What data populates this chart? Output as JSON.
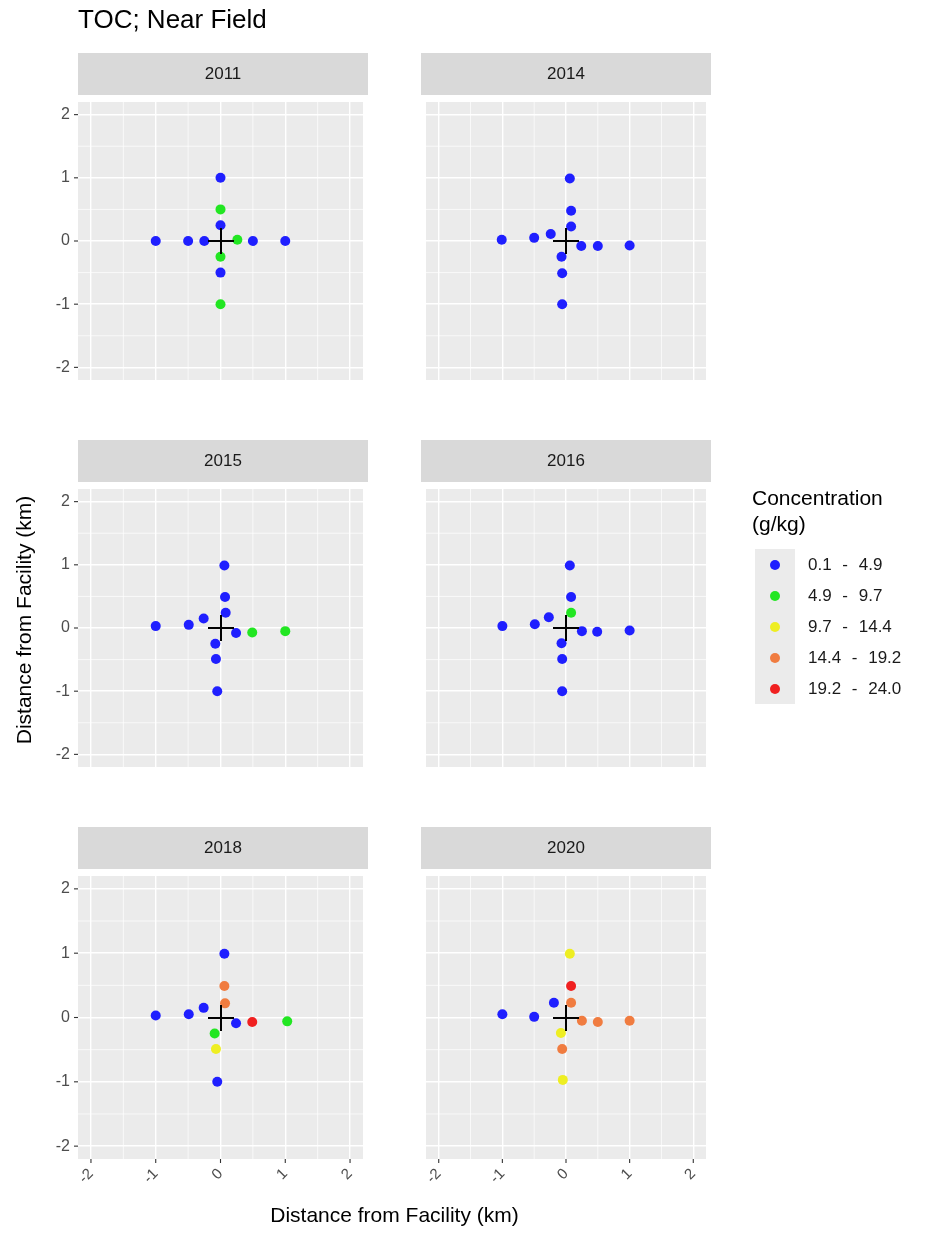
{
  "chart_data": [
    {
      "type": "scatter",
      "title": "2011",
      "subtitle": "TOC; Near Field",
      "xlim": [
        -2.2,
        2.2
      ],
      "ylim": [
        -2.2,
        2.2
      ],
      "xticks": [
        -2,
        -1,
        0,
        1,
        2
      ],
      "yticks": [
        -2,
        -1,
        0,
        1,
        2
      ],
      "grid": true,
      "tick_labels": "y",
      "marker": "circle",
      "series": [
        {
          "color": "#1f1fff",
          "x": [
            0,
            0,
            -1,
            -0.5,
            -0.25,
            0.5,
            1,
            0
          ],
          "values": [
            1,
            0.25,
            0,
            0,
            0,
            0,
            0,
            -0.5
          ]
        },
        {
          "color": "#22e622",
          "x": [
            0,
            0.26,
            0,
            0
          ],
          "values": [
            0.5,
            0.02,
            -0.25,
            -1
          ]
        }
      ]
    },
    {
      "type": "scatter",
      "title": "2014",
      "xlim": [
        -2.2,
        2.2
      ],
      "ylim": [
        -2.2,
        2.2
      ],
      "xticks": [
        -2,
        -1,
        0,
        1,
        2
      ],
      "yticks": [
        -2,
        -1,
        0,
        1,
        2
      ],
      "grid": true,
      "tick_labels": false,
      "marker": "circle",
      "series": [
        {
          "color": "#1f1fff",
          "x": [
            0.06,
            0.08,
            0.08,
            -1.01,
            -0.5,
            -0.24,
            0.24,
            0.5,
            1.0,
            -0.07,
            -0.06,
            -0.06
          ],
          "values": [
            0.99,
            0.48,
            0.23,
            0.02,
            0.05,
            0.11,
            -0.08,
            -0.08,
            -0.07,
            -0.25,
            -0.51,
            -1.0
          ]
        }
      ]
    },
    {
      "type": "scatter",
      "title": "2015",
      "ylabel": "Distance from Facility (km)",
      "xlim": [
        -2.2,
        2.2
      ],
      "ylim": [
        -2.2,
        2.2
      ],
      "xticks": [
        -2,
        -1,
        0,
        1,
        2
      ],
      "yticks": [
        -2,
        -1,
        0,
        1,
        2
      ],
      "grid": true,
      "tick_labels": "y",
      "marker": "circle",
      "series": [
        {
          "color": "#1f1fff",
          "x": [
            0.06,
            0.07,
            0.08,
            -1,
            -0.49,
            -0.26,
            0.24,
            -0.08,
            -0.07,
            -0.05
          ],
          "values": [
            0.99,
            0.49,
            0.24,
            0.03,
            0.05,
            0.15,
            -0.08,
            -0.25,
            -0.49,
            -1.0
          ]
        },
        {
          "color": "#22e622",
          "x": [
            0.49,
            1.0
          ],
          "values": [
            -0.07,
            -0.05
          ]
        }
      ]
    },
    {
      "type": "scatter",
      "title": "2016",
      "xlim": [
        -2.2,
        2.2
      ],
      "ylim": [
        -2.2,
        2.2
      ],
      "xticks": [
        -2,
        -1,
        0,
        1,
        2
      ],
      "yticks": [
        -2,
        -1,
        0,
        1,
        2
      ],
      "grid": true,
      "tick_labels": false,
      "marker": "circle",
      "series": [
        {
          "color": "#1f1fff",
          "x": [
            0.06,
            0.08,
            -1,
            -0.49,
            -0.27,
            0.25,
            0.49,
            1.0,
            -0.07,
            -0.06,
            -0.06
          ],
          "values": [
            0.99,
            0.49,
            0.03,
            0.06,
            0.17,
            -0.05,
            -0.06,
            -0.04,
            -0.24,
            -0.49,
            -1.0
          ]
        },
        {
          "color": "#22e622",
          "x": [
            0.08
          ],
          "values": [
            0.24
          ]
        }
      ]
    },
    {
      "type": "scatter",
      "title": "2018",
      "xlabel": "Distance from Facility (km)",
      "legend_title": "Concentration (g/kg)",
      "legend": "right",
      "xlim": [
        -2.2,
        2.2
      ],
      "ylim": [
        -2.2,
        2.2
      ],
      "xticks": [
        -2,
        -1,
        0,
        1,
        2
      ],
      "yticks": [
        -2,
        -1,
        0,
        1,
        2
      ],
      "grid": true,
      "marker": "circle",
      "series": [
        {
          "name": "0.1 - 4.9",
          "color": "#1f1fff",
          "x": [
            0.06,
            -1,
            -0.49,
            -0.26,
            0.24,
            -0.05
          ],
          "values": [
            0.99,
            0.03,
            0.05,
            0.15,
            -0.09,
            -1.0
          ]
        },
        {
          "name": "4.9 - 9.7",
          "color": "#22e622",
          "x": [
            1.03,
            -0.09
          ],
          "values": [
            -0.06,
            -0.25
          ]
        },
        {
          "name": "9.7 - 14.4",
          "color": "#eeee22",
          "x": [
            -0.07
          ],
          "values": [
            -0.49
          ]
        },
        {
          "name": "14.4 - 19.2",
          "color": "#f07c40",
          "x": [
            0.06,
            0.07
          ],
          "values": [
            0.49,
            0.22
          ]
        },
        {
          "name": "19.2 - 24.0",
          "color": "#f02020",
          "x": [
            0.49
          ],
          "values": [
            -0.07
          ]
        }
      ]
    },
    {
      "type": "scatter",
      "title": "2020",
      "xlim": [
        -2.2,
        2.2
      ],
      "ylim": [
        -2.2,
        2.2
      ],
      "xticks": [
        -2,
        -1,
        0,
        1,
        2
      ],
      "yticks": [
        -2,
        -1,
        0,
        1,
        2
      ],
      "grid": true,
      "tick_labels": "x",
      "marker": "circle",
      "series": [
        {
          "color": "#1f1fff",
          "x": [
            -1,
            -0.5,
            -0.19
          ],
          "values": [
            0.05,
            0.01,
            0.23
          ]
        },
        {
          "color": "#eeee22",
          "x": [
            0.06,
            -0.08,
            -0.05
          ],
          "values": [
            0.99,
            -0.24,
            -0.97
          ]
        },
        {
          "color": "#f07c40",
          "x": [
            0.08,
            0.25,
            0.5,
            1.0,
            -0.06
          ],
          "values": [
            0.23,
            -0.05,
            -0.07,
            -0.05,
            -0.49
          ]
        },
        {
          "color": "#f02020",
          "x": [
            0.08
          ],
          "values": [
            0.49
          ]
        }
      ]
    }
  ]
}
